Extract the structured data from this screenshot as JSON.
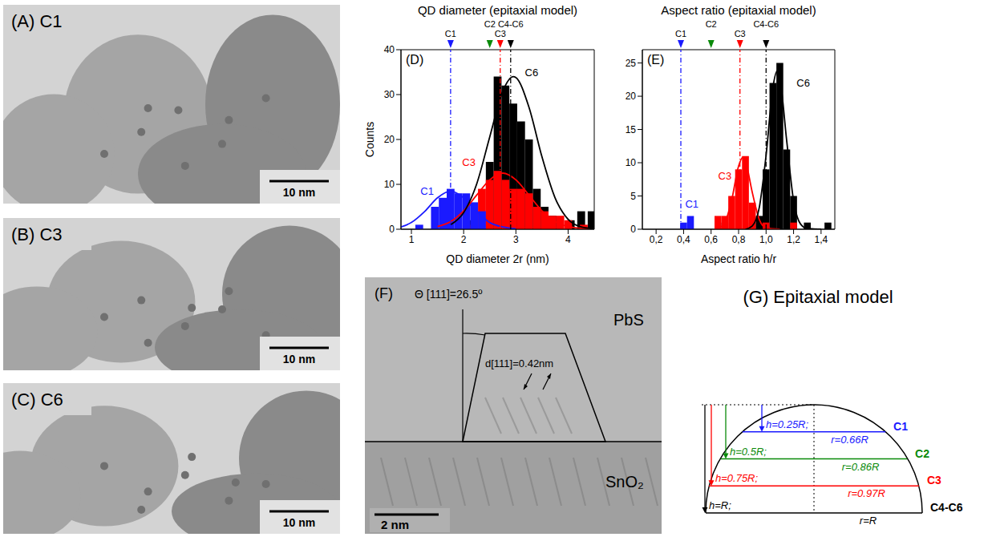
{
  "chart_data": [
    {
      "type": "bar",
      "panel": "(D)",
      "title": "QD diameter (epitaxial model)",
      "x_label": "QD diameter 2r (nm)",
      "y_label": "Counts",
      "xlim": [
        0.8,
        4.5
      ],
      "xticks": [
        1,
        2,
        3,
        4
      ],
      "ylim": [
        0,
        40
      ],
      "yticks": [
        0,
        10,
        20,
        30,
        40
      ],
      "bin_width": 0.15,
      "series": [
        {
          "name": "C6",
          "color": "#000000",
          "x": [
            2.1,
            2.5,
            2.65,
            2.8,
            2.95,
            3.1,
            3.25,
            3.4,
            3.55,
            3.7,
            4.05,
            4.25,
            4.45
          ],
          "values": [
            2,
            15,
            34,
            32,
            28,
            24,
            20,
            9,
            5,
            3,
            2,
            4,
            4
          ]
        },
        {
          "name": "C3",
          "color": "#ff0000",
          "x": [
            2.2,
            2.35,
            2.5,
            2.65,
            2.8,
            2.95,
            3.1,
            3.25,
            3.4,
            3.55,
            3.7,
            3.85,
            4.0,
            4.3
          ],
          "values": [
            1,
            9,
            11,
            13,
            11,
            9,
            9,
            8,
            5,
            4,
            3,
            3,
            2,
            1
          ]
        },
        {
          "name": "C1",
          "color": "#1a1aff",
          "x": [
            1.15,
            1.45,
            1.6,
            1.75,
            1.9,
            2.05,
            2.2,
            2.35
          ],
          "values": [
            1,
            5,
            7,
            9,
            8,
            8,
            6,
            4
          ]
        }
      ],
      "fits": [
        {
          "color": "#1a1aff",
          "line_style": "solid",
          "x": [
            0.8,
            1.0,
            1.25,
            1.5,
            1.75,
            2.0,
            2.25,
            2.5,
            2.75,
            3.0
          ],
          "values": [
            0.5,
            1.5,
            3.9,
            7.0,
            8.5,
            7.0,
            3.9,
            1.5,
            0.5,
            0.1
          ]
        },
        {
          "color": "#ff0000",
          "line_style": "solid",
          "x": [
            1.5,
            1.75,
            2.0,
            2.25,
            2.5,
            2.75,
            3.0,
            3.25,
            3.5,
            3.75,
            4.0,
            4.25,
            4.5
          ],
          "values": [
            0.6,
            1.7,
            4.1,
            7.6,
            11.0,
            12.5,
            11.0,
            7.6,
            4.1,
            1.7,
            0.6,
            0.2,
            0
          ]
        },
        {
          "color": "#000000",
          "line_style": "solid",
          "x": [
            1.75,
            2.0,
            2.25,
            2.5,
            2.75,
            2.95,
            3.0,
            3.25,
            3.5,
            3.75,
            4.0,
            4.25,
            4.5
          ],
          "values": [
            1.0,
            3.7,
            10.1,
            20.6,
            30.8,
            34,
            33.8,
            27.2,
            16.1,
            7.0,
            2.2,
            0.5,
            0.1
          ]
        }
      ],
      "markers": [
        {
          "label": "C1",
          "value": 1.75,
          "color": "#1a1aff",
          "line_style": "dashdot"
        },
        {
          "label": "C2",
          "value": 2.5,
          "color": "#0a8a0a",
          "line_style": "none"
        },
        {
          "label": "C3",
          "value": 2.7,
          "color": "#ff0000",
          "line_style": "dashdot"
        },
        {
          "label": "C4-C6",
          "value": 2.9,
          "color": "#000000",
          "line_style": "dashdot"
        }
      ],
      "annotations": [
        {
          "text": "C1",
          "x": 1.3,
          "y": 8.5,
          "color": "#1a1aff"
        },
        {
          "text": "C3",
          "x": 2.1,
          "y": 15,
          "color": "#ff0000"
        },
        {
          "text": "C6",
          "x": 3.3,
          "y": 35,
          "color": "#000000"
        }
      ]
    },
    {
      "type": "bar",
      "panel": "(E)",
      "title": "Aspect ratio (epitaxial model)",
      "x_label": "Aspect ratio h/r",
      "xlim": [
        0.1,
        1.5
      ],
      "xticks": [
        {
          "value": 0.2,
          "label": "0,2"
        },
        {
          "value": 0.4,
          "label": "0,4"
        },
        {
          "value": 0.6,
          "label": "0,6"
        },
        {
          "value": 0.8,
          "label": "0,8"
        },
        {
          "value": 1.0,
          "label": "1,0"
        },
        {
          "value": 1.2,
          "label": "1,2"
        },
        {
          "value": 1.4,
          "label": "1,4"
        }
      ],
      "ylim": [
        0,
        27
      ],
      "yticks": [
        0,
        5,
        10,
        15,
        20,
        25
      ],
      "bin_width": 0.05,
      "series": [
        {
          "name": "C6",
          "color": "#000000",
          "x": [
            0.7,
            0.9,
            0.95,
            1.0,
            1.05,
            1.1,
            1.15,
            1.2,
            1.3,
            1.45
          ],
          "values": [
            1,
            1,
            2,
            9,
            22,
            25,
            12,
            5,
            1,
            1
          ]
        },
        {
          "name": "C3",
          "color": "#ff0000",
          "x": [
            0.65,
            0.7,
            0.75,
            0.8,
            0.85,
            0.9,
            1.0,
            1.2
          ],
          "values": [
            2,
            2,
            5,
            9,
            11,
            4,
            1,
            1
          ]
        },
        {
          "name": "C1",
          "color": "#1a1aff",
          "x": [
            0.4,
            0.45
          ],
          "values": [
            1,
            2
          ]
        }
      ],
      "fits": [
        {
          "color": "#ff0000",
          "line_style": "solid",
          "x": [
            0.65,
            0.7,
            0.75,
            0.8,
            0.83,
            0.85,
            0.9,
            0.95,
            1.0,
            1.1
          ],
          "values": [
            0.1,
            1.0,
            4.4,
            9.5,
            10.8,
            10.2,
            5.5,
            1.5,
            0.2,
            0
          ]
        },
        {
          "color": "#000000",
          "line_style": "solid",
          "x": [
            0.85,
            0.9,
            0.95,
            1.0,
            1.05,
            1.08,
            1.1,
            1.15,
            1.2,
            1.25,
            1.3,
            1.4
          ],
          "values": [
            0,
            0.5,
            3.2,
            11.1,
            21.4,
            23.8,
            22.7,
            13.3,
            4.3,
            0.8,
            0.1,
            0
          ]
        }
      ],
      "markers": [
        {
          "label": "C1",
          "value": 0.38,
          "color": "#1a1aff",
          "line_style": "dashdot"
        },
        {
          "label": "C2",
          "value": 0.6,
          "color": "#0a8a0a",
          "line_style": "none"
        },
        {
          "label": "C3",
          "value": 0.81,
          "color": "#ff0000",
          "line_style": "dashdot"
        },
        {
          "label": "C4-C6",
          "value": 1.0,
          "color": "#000000",
          "line_style": "dashdot"
        }
      ],
      "annotations": [
        {
          "text": "C1",
          "x": 0.46,
          "y": 3.8,
          "color": "#1a1aff"
        },
        {
          "text": "C3",
          "x": 0.7,
          "y": 8,
          "color": "#ff0000"
        },
        {
          "text": "C6",
          "x": 1.27,
          "y": 22,
          "color": "#000000"
        }
      ]
    }
  ],
  "panels": {
    "A": {
      "label": "(A) C1",
      "scale_bar": "10 nm"
    },
    "B": {
      "label": "(B) C3",
      "scale_bar": "10 nm"
    },
    "C": {
      "label": "(C) C6",
      "scale_bar": "10 nm"
    },
    "F": {
      "panel": "(F)",
      "angle_label": "Θ [111]=26.5º",
      "spacing_label": "d[111]=0.42nm",
      "top_material": "PbS",
      "bottom_material": "SnO₂",
      "scale_bar": "2 nm"
    },
    "G": {
      "title": "(G) Epitaxial model",
      "cases": [
        {
          "label": "C1",
          "h": 0.25,
          "h_label": "h=0.25R;",
          "r": 0.66,
          "r_label": "r=0.66R",
          "color": "#1a1aff"
        },
        {
          "label": "C2",
          "h": 0.5,
          "h_label": "h=0.5R;",
          "r": 0.86,
          "r_label": "r=0.86R",
          "color": "#0a8a0a"
        },
        {
          "label": "C3",
          "h": 0.75,
          "h_label": "h=0.75R;",
          "r": 0.97,
          "r_label": "r=0.97R",
          "color": "#ff0000"
        },
        {
          "label": "C4-C6",
          "h": 1,
          "h_label": "h=R;",
          "r": 1,
          "r_label": "r=R",
          "color": "#000000"
        }
      ]
    }
  }
}
